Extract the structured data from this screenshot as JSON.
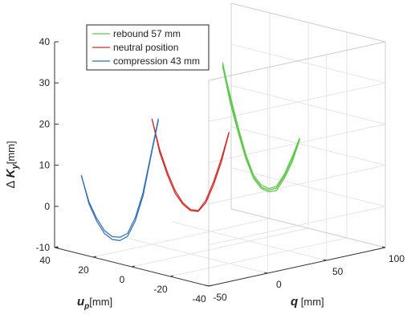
{
  "chart_data": {
    "type": "line",
    "projection": "3d",
    "grid": true,
    "legend_position": "top-left",
    "axes": {
      "z_label": {
        "prefix": "Δ ",
        "main": "K",
        "sub": "y",
        "unit": "[mm]"
      },
      "x_label": {
        "main": "u",
        "sub": "p",
        "unit": "[mm]"
      },
      "y_label": {
        "main": "q",
        "unit": " [mm]"
      },
      "x_ticks": [
        40,
        20,
        0,
        -20,
        -40
      ],
      "y_ticks": [
        -50,
        0,
        50,
        100
      ],
      "z_ticks": [
        -10,
        0,
        10,
        20,
        30,
        40
      ],
      "xlim": [
        -40,
        40
      ],
      "ylim": [
        -50,
        100
      ],
      "zlim": [
        -10,
        40
      ]
    },
    "series": [
      {
        "name": "rebound 57 mm",
        "color": "#5ec84a",
        "curves": [
          {
            "u": [
              20,
              16,
              12,
              8,
              4,
              0,
              -4,
              -8,
              -12,
              -16,
              -20
            ],
            "q": [
              60,
              60,
              60,
              60,
              60,
              60,
              60,
              60,
              60,
              60,
              60
            ],
            "k": [
              30.5,
              22,
              15,
              9,
              4.5,
              2.5,
              2.2,
              3.2,
              6.5,
              11,
              16.5
            ]
          },
          {
            "u": [
              20,
              16,
              12,
              8,
              4,
              0,
              -4,
              -8,
              -12,
              -16,
              -20
            ],
            "q": [
              60,
              60,
              60,
              60,
              60,
              60,
              60,
              60,
              60,
              60,
              60
            ],
            "k": [
              29.5,
              21,
              14.5,
              8.5,
              4.2,
              2.2,
              1.8,
              2.6,
              6,
              10.3,
              16.3
            ]
          },
          {
            "u": [
              20,
              16,
              12,
              8,
              4,
              0,
              -4,
              -8,
              -12,
              -16,
              -20
            ],
            "q": [
              60,
              60,
              60,
              60,
              60,
              60,
              60,
              60,
              60,
              60,
              60
            ],
            "k": [
              30,
              22.8,
              15.8,
              9.6,
              5,
              3,
              2.6,
              3.6,
              7,
              11.6,
              16.8
            ]
          }
        ]
      },
      {
        "name": "neutral position",
        "color": "#d12a28",
        "curves": [
          {
            "u": [
              20,
              16,
              12,
              8,
              4,
              0,
              -4,
              -8,
              -12,
              -16,
              -20
            ],
            "q": [
              0,
              0,
              0,
              0,
              0,
              0,
              0,
              0,
              0,
              0,
              0
            ],
            "k": [
              20.5,
              13.5,
              8.5,
              4.5,
              2,
              0.8,
              1,
              4,
              9,
              15,
              22
            ]
          },
          {
            "u": [
              20,
              16,
              12,
              8,
              4,
              0,
              -4,
              -8,
              -12,
              -16,
              -20
            ],
            "q": [
              0,
              0,
              0,
              0,
              0,
              0,
              0,
              0,
              0,
              0,
              0
            ],
            "k": [
              20.5,
              12.8,
              7.8,
              3.8,
              1.6,
              0.5,
              0.8,
              3.4,
              8.2,
              14.2,
              21.8
            ]
          }
        ]
      },
      {
        "name": "compression 43 mm",
        "color": "#2f6db5",
        "curves": [
          {
            "u": [
              20,
              16,
              12,
              8,
              4,
              0,
              -4,
              -8,
              -12,
              -16,
              -20
            ],
            "q": [
              -60,
              -60,
              -60,
              -60,
              -60,
              -60,
              -60,
              -60,
              -60,
              -60,
              -60
            ],
            "k": [
              10.5,
              4.5,
              1,
              -1.5,
              -2.5,
              -2.2,
              -0.8,
              3.5,
              10,
              19.5,
              29
            ]
          },
          {
            "u": [
              20,
              16,
              12,
              8,
              4,
              0,
              -4,
              -8,
              -12,
              -16,
              -20
            ],
            "q": [
              -60,
              -60,
              -60,
              -60,
              -60,
              -60,
              -60,
              -60,
              -60,
              -60,
              -60
            ],
            "k": [
              10.5,
              4,
              0.3,
              -2.2,
              -3.2,
              -3,
              -1.5,
              2.7,
              9.2,
              19,
              28.6
            ]
          }
        ]
      }
    ]
  }
}
